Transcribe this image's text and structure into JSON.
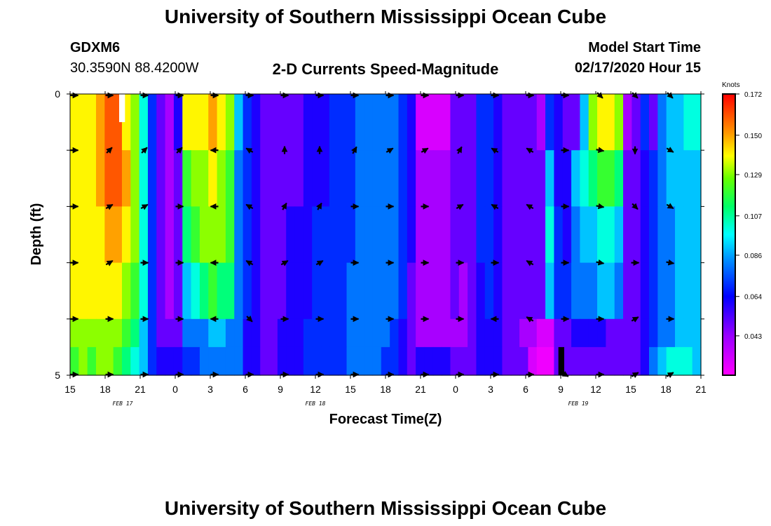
{
  "page_title": "University of Southern Mississippi Ocean Cube",
  "footer_title": "University of Southern Mississippi Ocean Cube",
  "station": {
    "id": "GDXM6",
    "coords": "30.3590N 88.4200W"
  },
  "model": {
    "label": "Model Start Time",
    "value": "02/17/2020 Hour 15"
  },
  "chart_data": {
    "type": "heatmap",
    "title": "2-D Currents Speed-Magnitude",
    "xlabel": "Forecast Time(Z)",
    "ylabel": "Depth (ft)",
    "x_range_hours": [
      0,
      54
    ],
    "y_range_ft": [
      0,
      5
    ],
    "x_ticks": [
      {
        "h": 0,
        "label": "15"
      },
      {
        "h": 3,
        "label": "18"
      },
      {
        "h": 6,
        "label": "21"
      },
      {
        "h": 9,
        "label": "0"
      },
      {
        "h": 12,
        "label": "3"
      },
      {
        "h": 15,
        "label": "6"
      },
      {
        "h": 18,
        "label": "9"
      },
      {
        "h": 21,
        "label": "12"
      },
      {
        "h": 24,
        "label": "15"
      },
      {
        "h": 27,
        "label": "18"
      },
      {
        "h": 30,
        "label": "21"
      },
      {
        "h": 33,
        "label": "0"
      },
      {
        "h": 36,
        "label": "3"
      },
      {
        "h": 39,
        "label": "6"
      },
      {
        "h": 42,
        "label": "9"
      },
      {
        "h": 45,
        "label": "12"
      },
      {
        "h": 48,
        "label": "15"
      },
      {
        "h": 51,
        "label": "18"
      },
      {
        "h": 54,
        "label": "21"
      }
    ],
    "y_ticks": [
      {
        "ft": 0,
        "label": "0"
      },
      {
        "ft": 5,
        "label": "5"
      }
    ],
    "day_labels": [
      {
        "h": 4.5,
        "label": "FEB 17"
      },
      {
        "h": 21,
        "label": "FEB 18"
      },
      {
        "h": 43.5,
        "label": "FEB 19"
      }
    ],
    "colorbar": {
      "unit": "Knots",
      "min": 0.022,
      "max": 0.172,
      "tick_values": [
        0.172,
        0.15,
        0.129,
        0.107,
        0.086,
        0.064,
        0.043
      ],
      "tick_labels": [
        "0.172",
        "0.150",
        "0.129",
        "0.107",
        "0.086",
        "0.064",
        "0.043"
      ]
    },
    "depth_rows_ft": [
      0,
      1,
      2,
      3,
      4,
      4.5
    ],
    "speed_knots_by_depth_rows": [
      [
        0.14,
        0.14,
        0.14,
        0.15,
        0.16,
        0.16,
        0.14,
        0.13,
        0.1,
        0.07,
        0.05,
        0.04,
        0.06,
        0.14,
        0.14,
        0.14,
        0.15,
        0.14,
        0.13,
        0.09,
        0.07,
        0.06,
        0.05,
        0.05,
        0.05,
        0.05,
        0.05,
        0.06,
        0.06,
        0.06,
        0.07,
        0.07,
        0.07,
        0.08,
        0.08,
        0.08,
        0.08,
        0.08,
        0.07,
        0.06,
        0.03,
        0.03,
        0.03,
        0.03,
        0.05,
        0.05,
        0.05,
        0.07,
        0.07,
        0.06,
        0.05,
        0.05,
        0.05,
        0.05,
        0.04,
        0.07,
        0.06,
        0.05,
        0.05,
        0.09,
        0.13,
        0.14,
        0.14,
        0.13,
        0.04,
        0.05,
        0.07,
        0.05,
        0.08,
        0.09,
        0.09,
        0.1,
        0.1
      ],
      [
        0.14,
        0.14,
        0.14,
        0.15,
        0.16,
        0.16,
        0.15,
        0.13,
        0.1,
        0.07,
        0.05,
        0.04,
        0.05,
        0.12,
        0.13,
        0.13,
        0.14,
        0.13,
        0.12,
        0.08,
        0.07,
        0.06,
        0.05,
        0.05,
        0.05,
        0.05,
        0.05,
        0.06,
        0.06,
        0.06,
        0.07,
        0.07,
        0.07,
        0.08,
        0.08,
        0.08,
        0.08,
        0.08,
        0.07,
        0.06,
        0.04,
        0.04,
        0.04,
        0.04,
        0.05,
        0.05,
        0.05,
        0.07,
        0.07,
        0.06,
        0.05,
        0.05,
        0.05,
        0.05,
        0.05,
        0.09,
        0.06,
        0.06,
        0.09,
        0.1,
        0.11,
        0.12,
        0.12,
        0.11,
        0.05,
        0.05,
        0.06,
        0.07,
        0.08,
        0.09,
        0.09,
        0.09,
        0.09
      ],
      [
        0.14,
        0.14,
        0.14,
        0.14,
        0.15,
        0.15,
        0.14,
        0.13,
        0.1,
        0.07,
        0.05,
        0.04,
        0.05,
        0.11,
        0.12,
        0.13,
        0.13,
        0.13,
        0.12,
        0.08,
        0.07,
        0.06,
        0.05,
        0.05,
        0.05,
        0.06,
        0.06,
        0.06,
        0.07,
        0.07,
        0.07,
        0.07,
        0.07,
        0.08,
        0.08,
        0.08,
        0.08,
        0.08,
        0.07,
        0.06,
        0.04,
        0.04,
        0.04,
        0.04,
        0.05,
        0.05,
        0.05,
        0.07,
        0.07,
        0.06,
        0.05,
        0.05,
        0.05,
        0.05,
        0.05,
        0.1,
        0.07,
        0.06,
        0.08,
        0.09,
        0.09,
        0.1,
        0.1,
        0.09,
        0.05,
        0.05,
        0.06,
        0.07,
        0.08,
        0.08,
        0.09,
        0.09,
        0.09
      ],
      [
        0.14,
        0.14,
        0.14,
        0.14,
        0.14,
        0.14,
        0.13,
        0.12,
        0.1,
        0.07,
        0.05,
        0.04,
        0.05,
        0.09,
        0.1,
        0.11,
        0.12,
        0.11,
        0.11,
        0.08,
        0.07,
        0.06,
        0.05,
        0.05,
        0.05,
        0.06,
        0.06,
        0.06,
        0.07,
        0.07,
        0.07,
        0.07,
        0.08,
        0.08,
        0.08,
        0.08,
        0.08,
        0.08,
        0.07,
        0.05,
        0.04,
        0.04,
        0.04,
        0.04,
        0.05,
        0.04,
        0.05,
        0.06,
        0.07,
        0.06,
        0.05,
        0.05,
        0.05,
        0.05,
        0.05,
        0.09,
        0.07,
        0.07,
        0.08,
        0.08,
        0.08,
        0.09,
        0.09,
        0.08,
        0.05,
        0.05,
        0.06,
        0.07,
        0.08,
        0.08,
        0.09,
        0.09,
        0.09
      ],
      [
        0.13,
        0.13,
        0.13,
        0.13,
        0.13,
        0.13,
        0.12,
        0.11,
        0.09,
        0.07,
        0.05,
        0.05,
        0.05,
        0.08,
        0.08,
        0.08,
        0.09,
        0.09,
        0.08,
        0.08,
        0.06,
        0.06,
        0.05,
        0.05,
        0.06,
        0.06,
        0.06,
        0.07,
        0.07,
        0.07,
        0.07,
        0.07,
        0.08,
        0.08,
        0.08,
        0.08,
        0.08,
        0.07,
        0.06,
        0.05,
        0.04,
        0.04,
        0.04,
        0.04,
        0.04,
        0.04,
        0.05,
        0.06,
        0.06,
        0.06,
        0.05,
        0.05,
        0.04,
        0.04,
        0.03,
        0.03,
        0.05,
        0.05,
        0.06,
        0.06,
        0.06,
        0.06,
        0.05,
        0.05,
        0.05,
        0.05,
        0.06,
        0.07,
        0.08,
        0.08,
        0.09,
        0.09,
        0.09
      ],
      [
        0.12,
        0.13,
        0.12,
        0.13,
        0.13,
        0.12,
        0.11,
        0.1,
        0.09,
        0.07,
        0.06,
        0.06,
        0.06,
        0.07,
        0.07,
        0.08,
        0.08,
        0.08,
        0.08,
        0.08,
        0.06,
        0.06,
        0.05,
        0.05,
        0.06,
        0.06,
        0.06,
        0.07,
        0.07,
        0.07,
        0.07,
        0.07,
        0.08,
        0.08,
        0.08,
        0.08,
        0.07,
        0.07,
        0.06,
        0.05,
        0.06,
        0.06,
        0.06,
        0.06,
        0.05,
        0.05,
        0.05,
        0.06,
        0.06,
        0.06,
        0.05,
        0.05,
        0.05,
        0.03,
        0.025,
        0.025,
        0.05,
        0.05,
        0.05,
        0.05,
        0.05,
        0.05,
        0.05,
        0.05,
        0.05,
        0.05,
        0.06,
        0.08,
        0.09,
        0.1,
        0.1,
        0.1,
        0.09
      ]
    ],
    "vector_times_h": [
      0,
      3,
      6,
      9,
      12,
      15,
      18,
      21,
      24,
      27,
      30,
      33,
      36,
      39,
      42,
      45,
      48,
      51
    ],
    "vector_depths_ft": [
      0,
      1,
      2,
      3,
      4,
      5
    ],
    "vector_directions_deg": [
      [
        90,
        90,
        90,
        90,
        90,
        90,
        90,
        90,
        90,
        90,
        90,
        90,
        90,
        90,
        90,
        135,
        135,
        135
      ],
      [
        90,
        45,
        45,
        45,
        270,
        300,
        0,
        0,
        30,
        60,
        60,
        30,
        300,
        300,
        90,
        100,
        180,
        120
      ],
      [
        90,
        60,
        60,
        90,
        270,
        300,
        30,
        30,
        90,
        90,
        90,
        60,
        300,
        300,
        90,
        100,
        135,
        120
      ],
      [
        90,
        60,
        90,
        90,
        270,
        300,
        60,
        60,
        90,
        90,
        90,
        90,
        90,
        300,
        90,
        100,
        90,
        100
      ],
      [
        90,
        90,
        90,
        90,
        270,
        135,
        90,
        90,
        90,
        90,
        90,
        90,
        270,
        300,
        90,
        90,
        60,
        90
      ],
      [
        90,
        90,
        90,
        90,
        90,
        90,
        90,
        90,
        90,
        90,
        90,
        90,
        90,
        90,
        120,
        90,
        60,
        60
      ]
    ],
    "missing_cells": [
      {
        "h_start": 4.2,
        "h_end": 4.7,
        "depth_start_ft": 0,
        "depth_end_ft": 0.5,
        "color": "#ffffff"
      },
      {
        "h_start": 41.8,
        "h_end": 42.3,
        "depth_start_ft": 4.5,
        "depth_end_ft": 5,
        "color": "#000000"
      }
    ]
  }
}
